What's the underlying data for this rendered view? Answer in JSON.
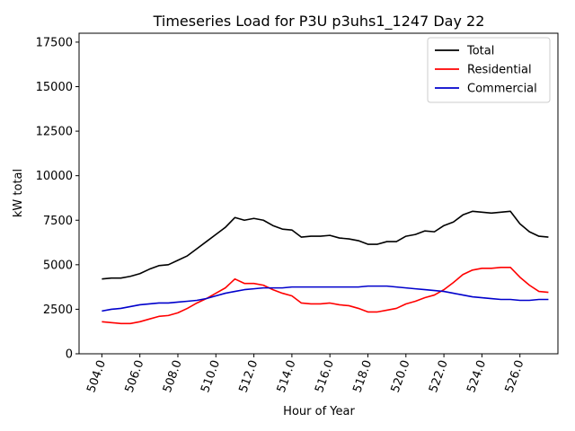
{
  "chart_data": {
    "type": "line",
    "title": "Timeseries Load for P3U p3uhs1_1247  Day 22",
    "xlabel": "Hour of Year",
    "ylabel": "kW total",
    "xlim": [
      502.8,
      528.0
    ],
    "ylim": [
      0,
      18000
    ],
    "x_ticks": [
      504,
      506,
      508,
      510,
      512,
      514,
      516,
      518,
      520,
      522,
      524,
      526
    ],
    "x_tick_labels": [
      "504.0",
      "506.0",
      "508.0",
      "510.0",
      "512.0",
      "514.0",
      "516.0",
      "518.0",
      "520.0",
      "522.0",
      "524.0",
      "526.0"
    ],
    "y_ticks": [
      0,
      2500,
      5000,
      7500,
      10000,
      12500,
      15000,
      17500
    ],
    "y_tick_labels": [
      "0",
      "2500",
      "5000",
      "7500",
      "10000",
      "12500",
      "15000",
      "17500"
    ],
    "legend_position": "top-right",
    "x": [
      504.0,
      504.5,
      505.0,
      505.5,
      506.0,
      506.5,
      507.0,
      507.5,
      508.0,
      508.5,
      509.0,
      509.5,
      510.0,
      510.5,
      511.0,
      511.5,
      512.0,
      512.5,
      513.0,
      513.5,
      514.0,
      514.5,
      515.0,
      515.5,
      516.0,
      516.5,
      517.0,
      517.5,
      518.0,
      518.5,
      519.0,
      519.5,
      520.0,
      520.5,
      521.0,
      521.5,
      522.0,
      522.5,
      523.0,
      523.5,
      524.0,
      524.5,
      525.0,
      525.5,
      526.0,
      526.5,
      527.0,
      527.5
    ],
    "series": [
      {
        "name": "Total",
        "color": "#000000",
        "values": [
          4200,
          4250,
          4250,
          4350,
          4500,
          4750,
          4950,
          5000,
          5250,
          5500,
          5900,
          6300,
          6700,
          7100,
          7650,
          7500,
          7600,
          7500,
          7200,
          7000,
          6950,
          6550,
          6600,
          6600,
          6650,
          6500,
          6450,
          6350,
          6150,
          6150,
          6300,
          6300,
          6600,
          6700,
          6900,
          6850,
          7200,
          7400,
          7800,
          8000,
          7950,
          7900,
          7950,
          8000,
          7300,
          6850,
          6600,
          6550
        ]
      },
      {
        "name": "Residential",
        "color": "#ff0000",
        "values": [
          1800,
          1750,
          1700,
          1700,
          1800,
          1950,
          2100,
          2150,
          2300,
          2550,
          2850,
          3100,
          3400,
          3700,
          4200,
          3950,
          3950,
          3850,
          3600,
          3400,
          3250,
          2850,
          2800,
          2800,
          2850,
          2750,
          2700,
          2550,
          2350,
          2350,
          2450,
          2550,
          2800,
          2950,
          3150,
          3300,
          3600,
          4000,
          4450,
          4700,
          4800,
          4800,
          4850,
          4850,
          4300,
          3850,
          3500,
          3450
        ]
      },
      {
        "name": "Commercial",
        "color": "#0000cc",
        "values": [
          2400,
          2500,
          2550,
          2650,
          2750,
          2800,
          2850,
          2850,
          2900,
          2950,
          3000,
          3100,
          3250,
          3400,
          3500,
          3600,
          3650,
          3700,
          3700,
          3700,
          3750,
          3750,
          3750,
          3750,
          3750,
          3750,
          3750,
          3750,
          3800,
          3800,
          3800,
          3750,
          3700,
          3650,
          3600,
          3550,
          3500,
          3400,
          3300,
          3200,
          3150,
          3100,
          3050,
          3050,
          3000,
          3000,
          3050,
          3050
        ]
      }
    ]
  }
}
